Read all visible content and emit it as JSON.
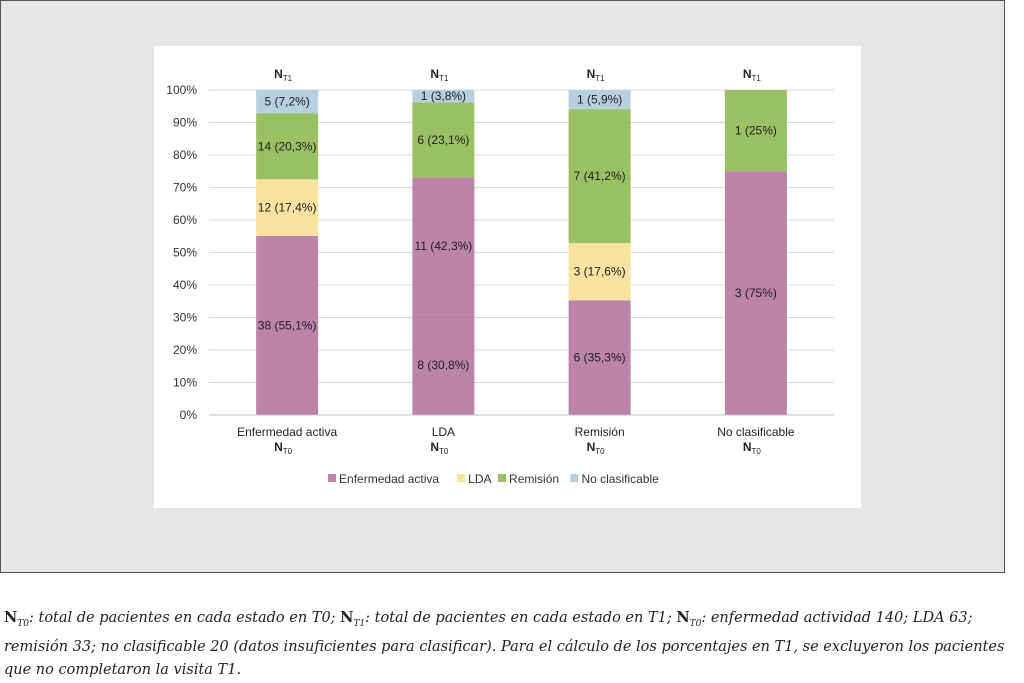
{
  "chart_data": {
    "type": "bar",
    "stacked": true,
    "categories": [
      "Enfermedad activa",
      "LDA",
      "Remisión",
      "No clasificable"
    ],
    "category_sublabel": {
      "main": "N",
      "sub": "T0"
    },
    "top_label": {
      "main": "N",
      "sub": "T1"
    },
    "ylim": [
      0,
      100
    ],
    "yticks": [
      "0%",
      "10%",
      "20%",
      "30%",
      "40%",
      "50%",
      "60%",
      "70%",
      "80%",
      "90%",
      "100%"
    ],
    "grid": true,
    "legend": "bottom",
    "series": [
      {
        "name": "Enfermedad activa",
        "color": "#bd84aa",
        "values": [
          55.1,
          30.8,
          35.3,
          75
        ],
        "labels": [
          "38 (55,1%)",
          "8 (30,8%)",
          "6 (35,3%)",
          "3 (75%)"
        ]
      },
      {
        "name": "LDA",
        "color": "#f7e2a0",
        "values": [
          17.4,
          42.3,
          17.6,
          0
        ],
        "labels": [
          "12 (17,4%)",
          "11 (42,3%)",
          "3 (17,6%)",
          ""
        ],
        "color_overrides": {
          "1": "#bd84aa"
        }
      },
      {
        "name": "Remisión",
        "color": "#99c063",
        "values": [
          20.3,
          23.1,
          41.2,
          25
        ],
        "labels": [
          "14 (20,3%)",
          "6 (23,1%)",
          "7 (41,2%)",
          "1 (25%)"
        ]
      },
      {
        "name": "No clasificable",
        "color": "#b8cfe0",
        "values": [
          7.2,
          3.8,
          5.9,
          0
        ],
        "labels": [
          "5 (7,2%)",
          "1 (3,8%)",
          "1 (5,9%)",
          ""
        ]
      }
    ]
  },
  "caption": {
    "n": "N",
    "t0": "T0",
    "t1": "T1",
    "p1": ": total de pacientes en cada estado en T0; ",
    "p2": ": total de pacientes en cada estado en T1; ",
    "p3": ": enfermedad actividad 140; LDA 63; remisión 33; no clasificable 20 (datos insuficientes para clasificar). Para el cálculo de los porcentajes en T1, se excluyeron los pacientes que no completaron la visita T1."
  }
}
